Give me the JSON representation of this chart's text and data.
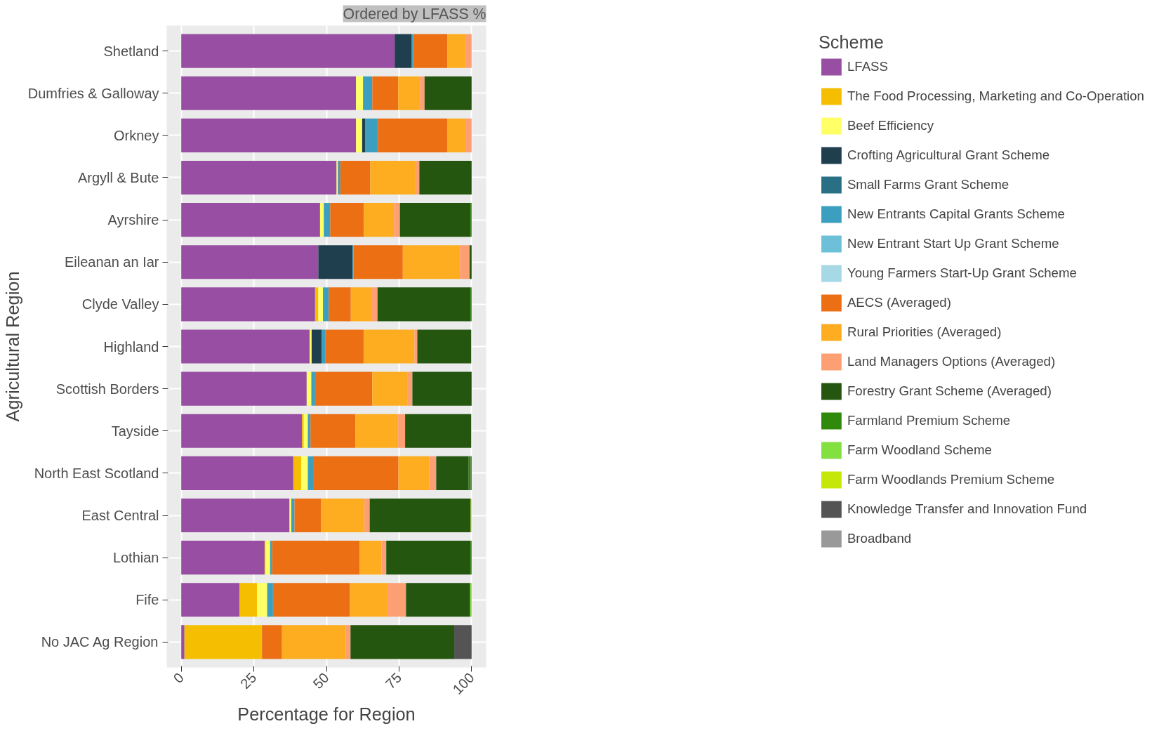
{
  "chart_data": {
    "type": "bar",
    "orientation": "horizontal",
    "stacked": true,
    "xlabel": "Percentage for Region",
    "ylabel": "Agricultural Region",
    "legend_title": "Scheme",
    "legend": "right",
    "grid": true,
    "annotations": [
      "Ordered by LFASS %"
    ],
    "categories": [
      "Shetland",
      "Dumfries & Galloway",
      "Orkney",
      "Argyll & Bute",
      "Ayrshire",
      "Eileanan an Iar",
      "Clyde Valley",
      "Highland",
      "Scottish Borders",
      "Tayside",
      "North East Scotland",
      "East Central",
      "Lothian",
      "Fife",
      "No JAC Ag Region"
    ],
    "xlim": [
      -5,
      105
    ],
    "xticks": [
      0,
      25,
      50,
      75,
      100
    ],
    "series": [
      {
        "name": "LFASS",
        "color": "#984ea3",
        "values": [
          73.5,
          60.2,
          60.2,
          53.5,
          47.8,
          47.2,
          46.1,
          44.2,
          43.2,
          41.6,
          38.6,
          37.3,
          28.7,
          20.1,
          1.1
        ]
      },
      {
        "name": "The Food Processing, Marketing and Co-Operation",
        "color": "#f5be00",
        "values": [
          null,
          null,
          null,
          null,
          null,
          null,
          1.1,
          null,
          null,
          0.6,
          2.7,
          null,
          0.3,
          6.0,
          26.5
        ]
      },
      {
        "name": "Beef Efficiency",
        "color": "#ffff66",
        "values": [
          null,
          2.4,
          2.1,
          0.5,
          1.3,
          null,
          1.6,
          0.7,
          1.6,
          1.4,
          2.3,
          0.6,
          1.6,
          3.5,
          null
        ]
      },
      {
        "name": "Crofting Agricultural Grant Scheme",
        "color": "#1f3f4f",
        "values": [
          5.9,
          null,
          1.0,
          null,
          null,
          11.8,
          null,
          3.4,
          null,
          null,
          null,
          null,
          null,
          null,
          null
        ]
      },
      {
        "name": "Small Farms Grant Scheme",
        "color": "#2a7085",
        "values": [
          null,
          null,
          null,
          0.3,
          null,
          null,
          null,
          null,
          null,
          null,
          null,
          null,
          null,
          null,
          null
        ]
      },
      {
        "name": "New Entrants Capital Grants Scheme",
        "color": "#3c9fc0",
        "values": [
          0.5,
          3.2,
          4.4,
          0.5,
          2.2,
          0.3,
          2.0,
          1.4,
          1.3,
          0.9,
          1.8,
          1.1,
          0.7,
          2.0,
          null
        ]
      },
      {
        "name": "New Entrant Start Up Grant Scheme",
        "color": "#6cc0d8",
        "values": [
          null,
          null,
          null,
          null,
          null,
          null,
          null,
          null,
          null,
          null,
          null,
          null,
          null,
          null,
          0.2
        ]
      },
      {
        "name": "Young Farmers Start-Up Grant Scheme",
        "color": "#a6d8e6",
        "values": [
          null,
          null,
          null,
          null,
          null,
          null,
          null,
          null,
          null,
          null,
          null,
          null,
          null,
          null,
          null
        ]
      },
      {
        "name": "AECS (Averaged)",
        "color": "#ec6f14",
        "values": [
          11.8,
          8.9,
          23.9,
          10.3,
          11.6,
          17.0,
          7.6,
          13.1,
          19.7,
          15.5,
          29.4,
          9.2,
          30.1,
          26.5,
          6.9
        ]
      },
      {
        "name": "Rural Priorities (Averaged)",
        "color": "#fdad1f",
        "values": [
          6.2,
          7.5,
          6.5,
          15.8,
          10.4,
          19.7,
          7.1,
          17.5,
          12.2,
          14.7,
          10.6,
          14.9,
          7.6,
          12.9,
          21.9
        ]
      },
      {
        "name": "Land Managers Options (Averaged)",
        "color": "#fc9f72",
        "values": [
          2.1,
          1.6,
          1.9,
          1.1,
          2.0,
          3.3,
          2.1,
          1.0,
          1.6,
          2.4,
          2.4,
          1.8,
          1.6,
          6.4,
          1.7
        ]
      },
      {
        "name": "Forestry Grant Scheme (Averaged)",
        "color": "#245610",
        "values": [
          null,
          16.2,
          null,
          18.0,
          24.3,
          0.7,
          32.0,
          18.5,
          20.4,
          22.7,
          11.2,
          34.8,
          29.0,
          22.1,
          35.7
        ]
      },
      {
        "name": "Farmland Premium Scheme",
        "color": "#2f8a0c",
        "values": [
          null,
          null,
          null,
          null,
          0.4,
          null,
          0.4,
          null,
          null,
          null,
          0.7,
          null,
          0.4,
          null,
          null
        ]
      },
      {
        "name": "Farm Woodland Scheme",
        "color": "#83e040",
        "values": [
          null,
          null,
          null,
          null,
          null,
          null,
          null,
          null,
          null,
          null,
          null,
          null,
          null,
          0.5,
          null
        ]
      },
      {
        "name": "Farm Woodlands Premium Scheme",
        "color": "#c6e70a",
        "values": [
          null,
          null,
          null,
          null,
          null,
          null,
          null,
          0.2,
          null,
          0.2,
          null,
          0.3,
          null,
          null,
          null
        ]
      },
      {
        "name": "Knowledge Transfer and Innovation Fund",
        "color": "#545454",
        "values": [
          null,
          null,
          null,
          null,
          null,
          null,
          null,
          null,
          null,
          null,
          0.3,
          null,
          null,
          null,
          6.0
        ]
      },
      {
        "name": "Broadband",
        "color": "#999999",
        "values": [
          null,
          null,
          null,
          null,
          null,
          null,
          null,
          null,
          null,
          null,
          null,
          null,
          null,
          null,
          null
        ]
      }
    ]
  }
}
